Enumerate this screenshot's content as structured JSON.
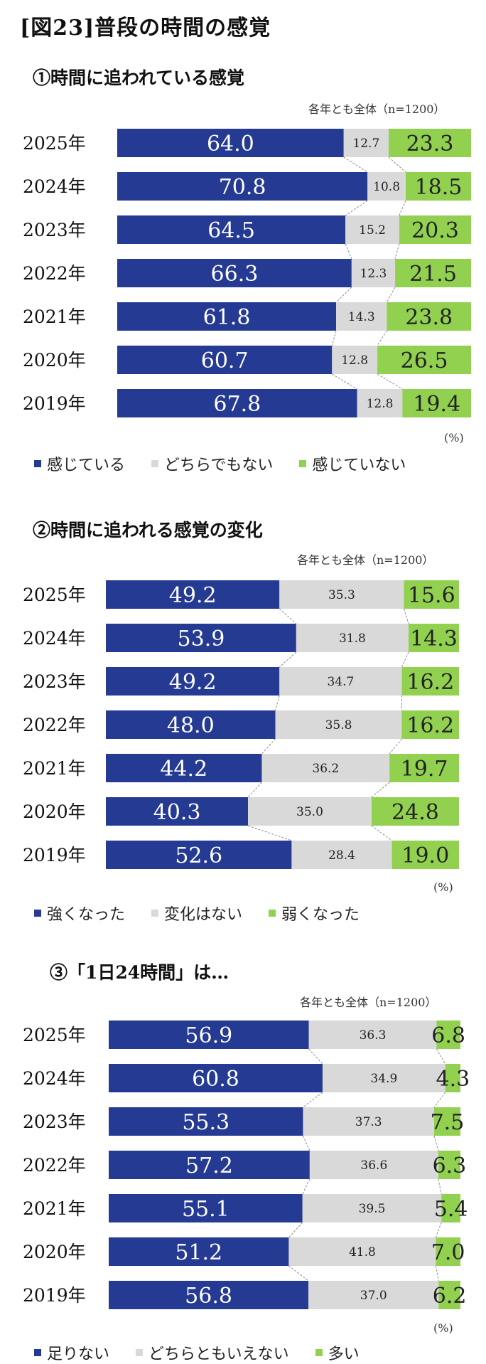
{
  "title": "[図23]普段の時間の感覚",
  "colors": {
    "pos": "#253a93",
    "mid": "#d9d9d9",
    "neg": "#92d050"
  },
  "chart_data": [
    {
      "type": "bar",
      "stacked": true,
      "orientation": "horizontal",
      "title": "①時間に追われている感覚",
      "note": "各年とも全体（n=1200）",
      "unit": "(%)",
      "categories": [
        "2025年",
        "2024年",
        "2023年",
        "2022年",
        "2021年",
        "2020年",
        "2019年"
      ],
      "series": [
        {
          "name": "感じている",
          "values": [
            64.0,
            70.8,
            64.5,
            66.3,
            61.8,
            60.7,
            67.8
          ]
        },
        {
          "name": "どちらでもない",
          "values": [
            12.7,
            10.8,
            15.2,
            12.3,
            14.3,
            12.8,
            12.8
          ]
        },
        {
          "name": "感じていない",
          "values": [
            23.3,
            18.5,
            20.3,
            21.5,
            23.8,
            26.5,
            19.4
          ]
        }
      ]
    },
    {
      "type": "bar",
      "stacked": true,
      "orientation": "horizontal",
      "title": "②時間に追われる感覚の変化",
      "note": "各年とも全体（n=1200）",
      "unit": "(%)",
      "categories": [
        "2025年",
        "2024年",
        "2023年",
        "2022年",
        "2021年",
        "2020年",
        "2019年"
      ],
      "series": [
        {
          "name": "強くなった",
          "values": [
            49.2,
            53.9,
            49.2,
            48.0,
            44.2,
            40.3,
            52.6
          ]
        },
        {
          "name": "変化はない",
          "values": [
            35.3,
            31.8,
            34.7,
            35.8,
            36.2,
            35.0,
            28.4
          ]
        },
        {
          "name": "弱くなった",
          "values": [
            15.6,
            14.3,
            16.2,
            16.2,
            19.7,
            24.8,
            19.0
          ]
        }
      ]
    },
    {
      "type": "bar",
      "stacked": true,
      "orientation": "horizontal",
      "title": "③「1日24時間」は…",
      "note": "各年とも全体（n=1200）",
      "unit": "(%)",
      "categories": [
        "2025年",
        "2024年",
        "2023年",
        "2022年",
        "2021年",
        "2020年",
        "2019年"
      ],
      "series": [
        {
          "name": "足りない",
          "values": [
            56.9,
            60.8,
            55.3,
            57.2,
            55.1,
            51.2,
            56.8
          ]
        },
        {
          "name": "どちらともいえない",
          "values": [
            36.3,
            34.9,
            37.3,
            36.6,
            39.5,
            41.8,
            37.0
          ]
        },
        {
          "name": "多い",
          "values": [
            6.8,
            4.3,
            7.5,
            6.3,
            5.4,
            7.0,
            6.2
          ]
        }
      ]
    }
  ]
}
